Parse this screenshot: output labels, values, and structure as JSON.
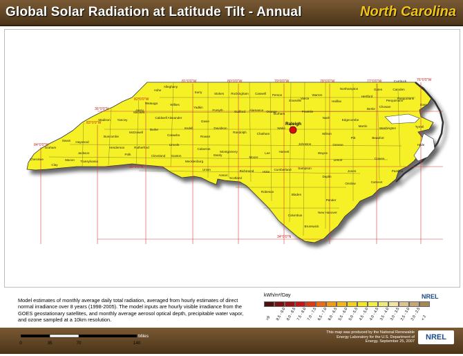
{
  "header": {
    "title": "Global Solar Radiation at Latitude Tilt - Annual",
    "state": "North Carolina"
  },
  "description": "Model estimates of monthly average daily total radiation, averaged from hourly estimates of direct normal irradiance over 8 years (1998-2005). The model inputs are hourly visible irradiance from the GOES geostationary satellites, and monthly average aerosol optical depth, precipitable water vapor, and ozone sampled at a 10km resolution.",
  "scale": {
    "unit": "Miles",
    "ticks": [
      "0",
      "35",
      "70",
      "140"
    ]
  },
  "credit": "This map was produced by the National Renewable Energy Laboratory for the U.S. Department of Energy. September 25, 2007",
  "legend": {
    "title": "kWh/m²/Day",
    "logo": "NREL",
    "ranges": [
      ">9",
      "8.5 - 9.0",
      "8.0 - 8.5",
      "7.5 - 8.0",
      "7.0 - 7.5",
      "6.5 - 7.0",
      "6.0 - 6.5",
      "5.5 - 6.0",
      "5.0 - 5.5",
      "4.5 - 5.0",
      "4.0 - 4.5",
      "3.5 - 4.0",
      "3.0 - 3.5",
      "2.5 - 3.0",
      "2.0 - 2.5",
      "< 2"
    ],
    "colors": [
      "#4b0f0f",
      "#7a1010",
      "#a01010",
      "#c81414",
      "#e23a10",
      "#ef6a10",
      "#f39c12",
      "#f6b819",
      "#f7d21d",
      "#f8e61f",
      "#f3ef45",
      "#eeea7a",
      "#f1e3a3",
      "#ddc38f",
      "#c7a574",
      "#a88755"
    ]
  },
  "map": {
    "fill_color": "#f5f125",
    "graticule": {
      "longitudes": [
        "84°0'0\"W",
        "83°0'0\"W",
        "82°0'0\"W",
        "81°0'0\"W",
        "80°0'0\"W",
        "79°0'0\"W",
        "78°0'0\"W",
        "77°0'0\"W",
        "76°0'0\"W"
      ],
      "latitudes": [
        "36°0'0\"N",
        "35°0'0\"N",
        "34°0'0\"N"
      ]
    },
    "city": "Raleigh",
    "counties": [
      "Alleghany",
      "Ashe",
      "Surry",
      "Stokes",
      "Rockingham",
      "Caswell",
      "Person",
      "Granville",
      "Warren",
      "Northampton",
      "Gates",
      "Currituck",
      "Watauga",
      "Wilkes",
      "Yadkin",
      "Forsyth",
      "Guilford",
      "Alamance",
      "Orange",
      "Durham",
      "Vance",
      "Halifax",
      "Hertford",
      "Camden",
      "Avery",
      "Caldwell",
      "Alexander",
      "Davie",
      "Davidson",
      "Randolph",
      "Chatham",
      "Wake",
      "Franklin",
      "Nash",
      "Edgecombe",
      "Bertie",
      "Madison",
      "Yancey",
      "Mitchell",
      "Burke",
      "Catawba",
      "Iredell",
      "Rowan",
      "Wilson",
      "Martin",
      "Washington",
      "Tyrrell",
      "Swain",
      "Buncombe",
      "McDowell",
      "Lincoln",
      "Cabarrus",
      "Stanly",
      "Montgomery",
      "Moore",
      "Lee",
      "Harnett",
      "Johnston",
      "Greene",
      "Pitt",
      "Beaufort",
      "Hyde",
      "Graham",
      "Haywood",
      "Jackson",
      "Henderson",
      "Rutherford",
      "Cleveland",
      "Gaston",
      "Mecklenburg",
      "Union",
      "Anson",
      "Richmond",
      "Hoke",
      "Cumberland",
      "Sampson",
      "Wayne",
      "Lenoir",
      "Craven",
      "Pamlico",
      "Cherokee",
      "Clay",
      "Macon",
      "Transylvania",
      "Polk",
      "Scotland",
      "Robeson",
      "Bladen",
      "Duplin",
      "Jones",
      "Onslow",
      "Carteret",
      "Pender",
      "Columbus",
      "New Hanover",
      "Brunswick",
      "Dare",
      "Perquimans",
      "Chowan",
      "Pasquotank"
    ]
  }
}
